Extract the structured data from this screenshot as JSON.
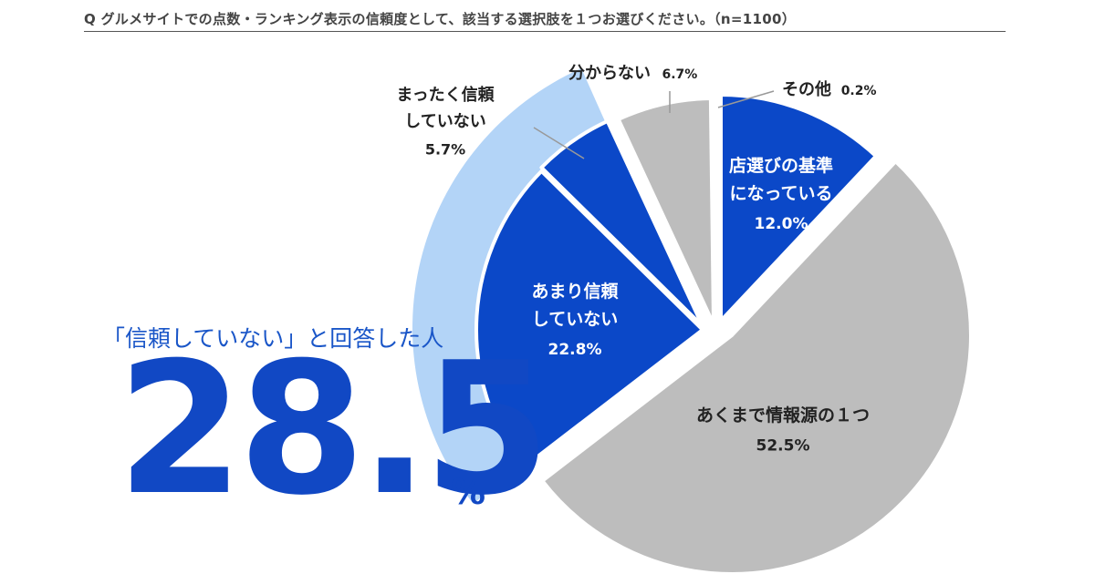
{
  "question": {
    "text": "Q グルメサイトでの点数・ランキング表示の信頼度として、該当する選択肢を１つお選びください。（n=1100）"
  },
  "callout": {
    "label": "「信頼していない」と回答した人",
    "value": "28.5",
    "unit": "%"
  },
  "chart_data": {
    "type": "pie",
    "title": "",
    "slices": [
      {
        "label": "店選びの基準になっている",
        "value": 12.0,
        "value_label": "12.0%",
        "color": "#0b48c8"
      },
      {
        "label": "あくまで情報源の１つ",
        "value": 52.5,
        "value_label": "52.5%",
        "color": "#bdbdbd"
      },
      {
        "label": "あまり信頼していない",
        "value": 22.8,
        "value_label": "22.8%",
        "color": "#0b48c8"
      },
      {
        "label": "まったく信頼していない",
        "value": 5.7,
        "value_label": "5.7%",
        "color": "#0b48c8"
      },
      {
        "label": "分からない",
        "value": 6.7,
        "value_label": "6.7%",
        "color": "#bdbdbd"
      },
      {
        "label": "その他",
        "value": 0.2,
        "value_label": "0.2%",
        "color": "#bdbdbd"
      }
    ],
    "highlight": {
      "slices": [
        "あまり信頼していない",
        "まったく信頼していない"
      ],
      "color": "#b3d4f7"
    }
  }
}
